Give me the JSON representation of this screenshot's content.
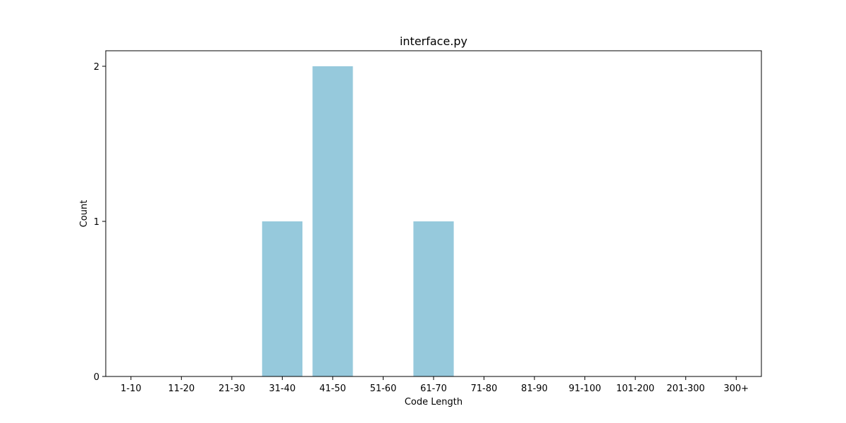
{
  "chart_data": {
    "type": "bar",
    "title": "interface.py",
    "xlabel": "Code Length",
    "ylabel": "Count",
    "categories": [
      "1-10",
      "11-20",
      "21-30",
      "31-40",
      "41-50",
      "51-60",
      "61-70",
      "71-80",
      "81-90",
      "91-100",
      "101-200",
      "201-300",
      "300+"
    ],
    "values": [
      0,
      0,
      0,
      1,
      2,
      0,
      1,
      0,
      0,
      0,
      0,
      0,
      0
    ],
    "ylim": [
      0,
      2.1
    ],
    "yticks": [
      0,
      1,
      2
    ],
    "grid": false,
    "legend": "none",
    "bar_color": "#96c9dc"
  }
}
